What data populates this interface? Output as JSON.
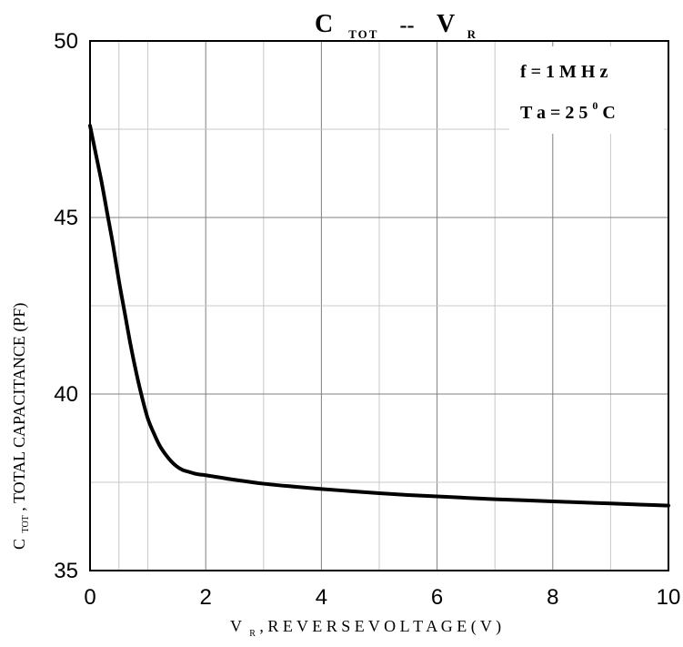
{
  "chart_data": {
    "type": "line",
    "title_main": "C",
    "title_sub": "TOT",
    "title_sep": "--",
    "title_v": "V",
    "title_v_sub": "R",
    "xlabel_main": "V",
    "xlabel_sub": "R",
    "xlabel_rest": ", R E V E R S E   V O L T A G E   ( V )",
    "ylabel_main": "C",
    "ylabel_sub": "TOT",
    "ylabel_rest": " ,   TOTAL   CAPACITANCE (PF)",
    "xlim": [
      0,
      10
    ],
    "ylim": [
      35,
      50
    ],
    "xticks": [
      "0",
      "2",
      "4",
      "6",
      "8",
      "10"
    ],
    "yticks": [
      "35",
      "40",
      "45",
      "50"
    ],
    "x_gridlines": [
      0.5,
      1,
      2,
      3,
      4,
      5,
      6,
      7,
      8,
      9
    ],
    "y_gridlines": [
      37.5,
      40,
      42.5,
      45,
      47.5
    ],
    "grid": true,
    "legend_position": "top-right",
    "annotation_line1": "f = 1 M H z",
    "annotation_line2_main": "T a = 2 5 ",
    "annotation_line2_sup": "0",
    "annotation_line2_end": "C",
    "series": [
      {
        "x": [
          0,
          0.1,
          0.2,
          0.3,
          0.4,
          0.5,
          0.6,
          0.7,
          0.8,
          0.9,
          1.0,
          1.1,
          1.2,
          1.3,
          1.4,
          1.5,
          1.6,
          1.7,
          1.8,
          1.9,
          2.0,
          2.5,
          3.0,
          3.5,
          4.0,
          4.5,
          5.0,
          5.5,
          6.0,
          6.5,
          7.0,
          7.5,
          8.0,
          8.5,
          9.0,
          9.5,
          10.0
        ],
        "values": [
          47.6,
          46.8,
          46.0,
          45.1,
          44.2,
          43.2,
          42.3,
          41.4,
          40.6,
          39.9,
          39.3,
          38.9,
          38.55,
          38.3,
          38.1,
          37.95,
          37.85,
          37.8,
          37.75,
          37.72,
          37.7,
          37.57,
          37.46,
          37.38,
          37.31,
          37.25,
          37.19,
          37.14,
          37.1,
          37.06,
          37.02,
          36.99,
          36.96,
          36.93,
          36.9,
          36.87,
          36.84
        ]
      }
    ]
  },
  "colors": {
    "background": "#ffffff",
    "frame": "#000000",
    "grid_major": "#7f7f7f",
    "grid_minor": "#c8c8c8",
    "curve": "#000000"
  }
}
